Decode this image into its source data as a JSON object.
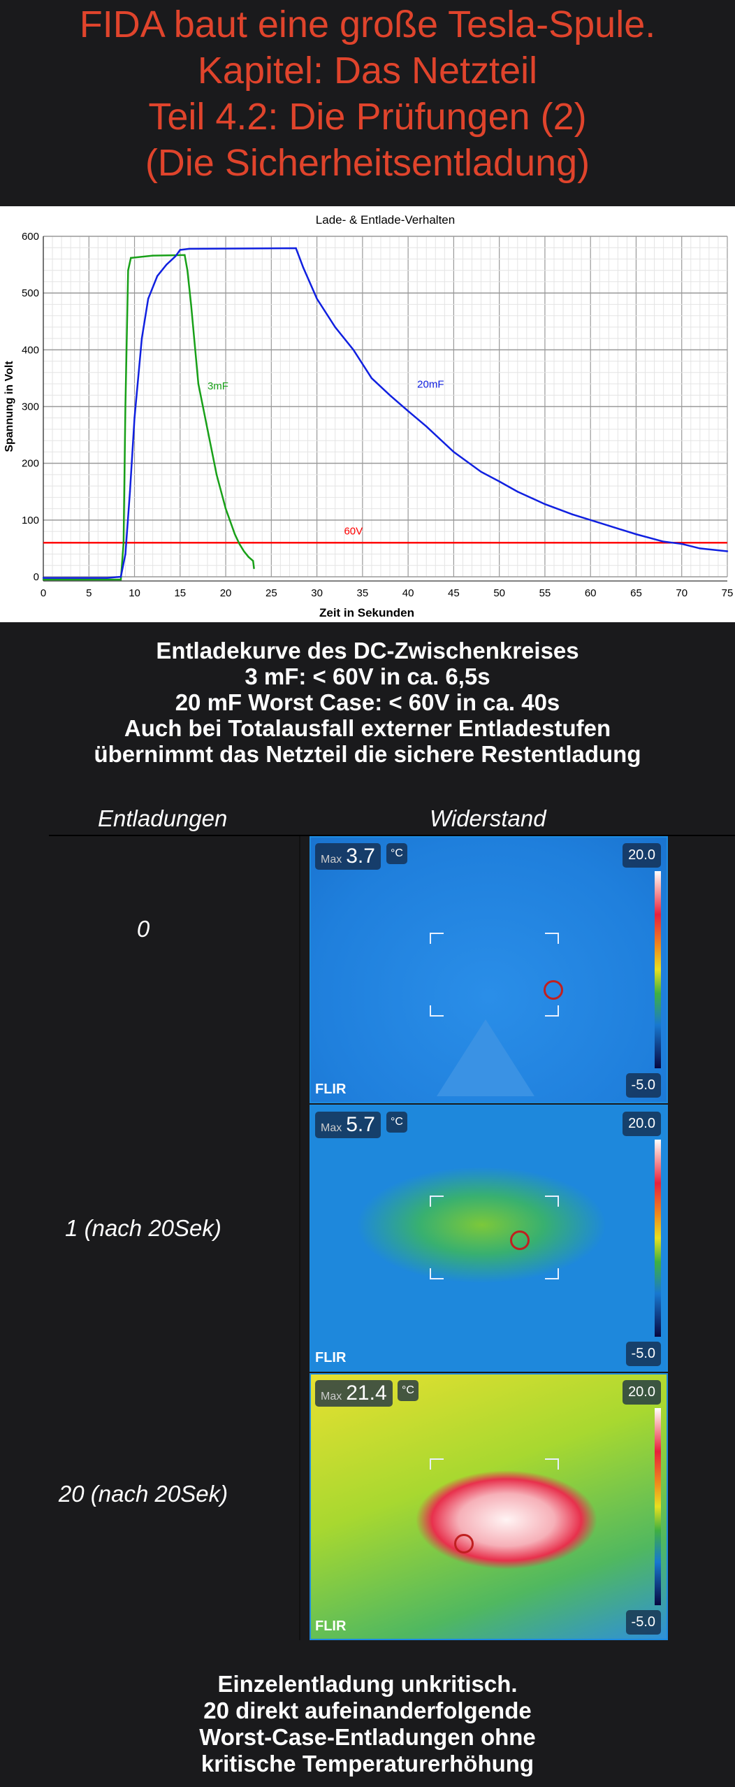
{
  "header": {
    "lines": [
      "FIDA baut eine große Tesla-Spule.",
      "Kapitel: Das Netzteil",
      "Teil 4.2: Die Prüfungen (2)",
      "(Die Sicherheitsentladung)"
    ],
    "color": "#e0442c"
  },
  "chart_data": {
    "type": "line",
    "title": "Lade- & Entlade-Verhalten",
    "xlabel": "Zeit in Sekunden",
    "ylabel": "Spannung in Volt",
    "xlim": [
      0,
      75
    ],
    "ylim": [
      0,
      600
    ],
    "xticks": [
      0,
      5,
      10,
      15,
      20,
      25,
      30,
      35,
      40,
      45,
      50,
      55,
      60,
      65,
      70,
      75
    ],
    "yticks": [
      0,
      100,
      200,
      300,
      400,
      500,
      600
    ],
    "grid": true,
    "series": [
      {
        "name": "3mF",
        "color": "#18a018",
        "x": [
          0,
          8.5,
          8.8,
          9,
          9.3,
          9.6,
          12,
          15.5,
          15.8,
          16.2,
          17,
          17.5,
          18,
          19,
          20,
          21,
          21.5,
          22,
          22.5,
          23,
          23.1
        ],
        "y": [
          -5,
          -5,
          60,
          300,
          540,
          562,
          566,
          567,
          540,
          480,
          340,
          300,
          260,
          180,
          120,
          75,
          58,
          45,
          35,
          28,
          15
        ]
      },
      {
        "name": "20mF",
        "color": "#1020e0",
        "x": [
          0,
          7,
          8.5,
          9,
          9.5,
          10,
          10.8,
          11.5,
          12.5,
          13.5,
          14.5,
          15,
          16,
          27.7,
          28.5,
          30,
          32,
          34,
          36,
          38,
          40,
          42,
          45,
          48,
          50,
          52,
          55,
          58,
          60,
          62,
          65,
          68,
          70,
          72,
          75
        ],
        "y": [
          -2,
          -2,
          0,
          40,
          150,
          280,
          420,
          490,
          530,
          550,
          565,
          576,
          578,
          579,
          545,
          490,
          440,
          400,
          350,
          320,
          292,
          265,
          220,
          185,
          168,
          150,
          128,
          110,
          100,
          90,
          75,
          62,
          58,
          50,
          45
        ]
      }
    ],
    "annotations": [
      {
        "text": "60V",
        "y": 60,
        "color": "#ff0000"
      }
    ]
  },
  "summary": [
    "Entladekurve des DC-Zwischenkreises",
    "3 mF: < 60V in ca. 6,5s",
    "20 mF Worst Case: < 60V in ca. 40s",
    "Auch bei Totalausfall externer Entladestufen",
    "übernimmt das Netzteil die sichere Restentladung"
  ],
  "table": {
    "col1": "Entladungen",
    "col2": "Widerstand",
    "rows": [
      {
        "label": "0",
        "max_label": "Max",
        "max": "3.7",
        "unit": "°C",
        "scale_high": "20.0",
        "scale_low": "-5.0",
        "brand": "FLIR"
      },
      {
        "label": "1 (nach 20Sek)",
        "max_label": "Max",
        "max": "5.7",
        "unit": "°C",
        "scale_high": "20.0",
        "scale_low": "-5.0",
        "brand": "FLIR"
      },
      {
        "label": "20 (nach 20Sek)",
        "max_label": "Max",
        "max": "21.4",
        "unit": "°C",
        "scale_high": "20.0",
        "scale_low": "-5.0",
        "brand": "FLIR"
      }
    ]
  },
  "footer": [
    "Einzelentladung unkritisch.",
    "20 direkt aufeinanderfolgende",
    "Worst-Case-Entladungen ohne",
    "kritische Temperaturerhöhung"
  ]
}
